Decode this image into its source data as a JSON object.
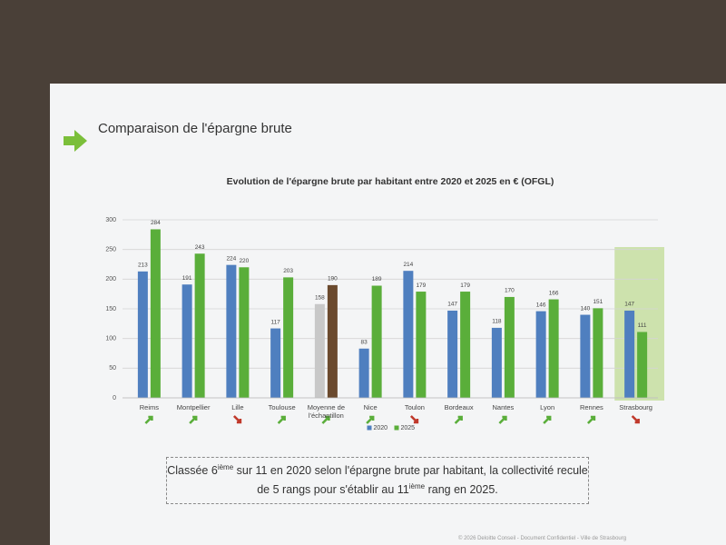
{
  "slide": {
    "heading": "Comparaison de l'épargne brute",
    "callout": [
      "Classée 6",
      "ième",
      " sur 11 en 2020 selon l'épargne brute par habitant, la collectivité recule de 5 rangs pour s'établir au 11",
      "ième",
      " rang en 2025."
    ],
    "footer": "© 2026 Deloitte Conseil - Document Confidentiel - Ville de Strasbourg"
  },
  "chart_data": {
    "type": "bar",
    "title": "Evolution de l'épargne brute par habitant entre 2020 et 2025 en € (OFGL)",
    "categories": [
      "Reims",
      "Montpellier",
      "Lille",
      "Toulouse",
      "Moyenne de l'échantillon",
      "Nice",
      "Toulon",
      "Bordeaux",
      "Nantes",
      "Lyon",
      "Rennes",
      "Strasbourg"
    ],
    "series": [
      {
        "name": "2020",
        "color": "#4f7fbf",
        "values": [
          213,
          191,
          224,
          117,
          158,
          83,
          214,
          147,
          118,
          146,
          140,
          147
        ],
        "colors": [
          "#4f7fbf",
          "#4f7fbf",
          "#4f7fbf",
          "#4f7fbf",
          "#c8c8c8",
          "#4f7fbf",
          "#4f7fbf",
          "#4f7fbf",
          "#4f7fbf",
          "#4f7fbf",
          "#4f7fbf",
          "#4f7fbf"
        ]
      },
      {
        "name": "2025",
        "color": "#5aae3a",
        "values": [
          284,
          243,
          220,
          203,
          190,
          189,
          179,
          179,
          170,
          166,
          151,
          111
        ],
        "colors": [
          "#5aae3a",
          "#5aae3a",
          "#5aae3a",
          "#5aae3a",
          "#6b4a2e",
          "#5aae3a",
          "#5aae3a",
          "#5aae3a",
          "#5aae3a",
          "#5aae3a",
          "#5aae3a",
          "#5aae3a"
        ]
      }
    ],
    "trends": [
      "up",
      "up",
      "down",
      "up",
      "up",
      "up",
      "down",
      "up",
      "up",
      "up",
      "up",
      "down"
    ],
    "highlight_index": 11,
    "ylim": [
      0,
      300
    ],
    "yticks": [
      0,
      50,
      100,
      150,
      200,
      250,
      300
    ],
    "grid": true,
    "legend": "bottom"
  }
}
